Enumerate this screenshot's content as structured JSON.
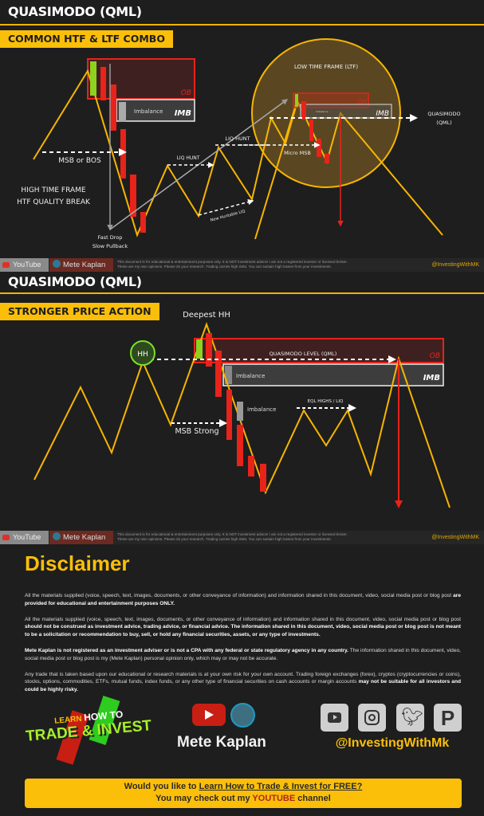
{
  "section1": {
    "title": "QUASIMODO (QML)",
    "banner": "COMMON HTF & LTF COMBO",
    "labels": {
      "ob": "OB",
      "imbalance": "Imbalance",
      "imb": "IMB",
      "msb": "MSB or BOS",
      "htf1": "HIGH TIME FRAME",
      "htf2": "HTF QUALITY BREAK",
      "fast_drop": "Fast Drop",
      "slow_pullback": "Slow Pullback",
      "liq_hunt_1": "LIQ HUNT",
      "liq_hunt_2": "LIQ HUNT",
      "new_liq": "New Huntable LIQ",
      "ltf": "LOW TIME FRAME (LTF)",
      "ltf_ob": "OB",
      "ltf_imb": "IMB",
      "ltf_imbalance": "Imbalance",
      "micro_msb": "Micro MSB",
      "qml1": "QUASIMODO",
      "qml2": "(QML)"
    }
  },
  "section2": {
    "title": "QUASIMODO (QML)",
    "banner": "STRONGER PRICE ACTION",
    "labels": {
      "deepest_hh": "Deepest HH",
      "hh": "HH",
      "qml_level": "QUASIMODO LEVEL (QML)",
      "ob": "OB",
      "imbalance": "Imbalance",
      "imb": "IMB",
      "imbalance2": "Imbalance",
      "eql": "EQL HIGHS / LIQ",
      "msb": "MSB Strong"
    }
  },
  "footer_bar": {
    "youtube": "YouTube",
    "author": "Mete Kaplan",
    "disclaimer_line1": "This document is for educational & entertainment purposes only. It is NOT investment advice! I am not a registered investor or licensed broker.",
    "disclaimer_line2": "These are my own opinions. Please do your research. Trading carries high risks. You can sustain high losses from your investments.",
    "handle": "@InvestingWithMK"
  },
  "disclaimer": {
    "title": "Disclaimer",
    "p1a": "All the materials supplied (voice, speech, text, images, documents, or other conveyance of information) and information shared in this document, video, social media post or blog post ",
    "p1b": "are provided for educational and entertainment purposes ONLY.",
    "p2a": "All the materials supplied (voice, speech, text, images, documents, or other conveyance of information) and information shared in this document, video, social media post or blog post ",
    "p2b": "should not be construed as investment advice, trading advice, or financial advice. The information shared in this document, video, social media post or blog post is not meant to be a solicitation or recommendation to buy, sell, or hold any financial securities, assets, or any type of investments.",
    "p3a": "Mete Kaplan is not registered as an investment adviser or is not a CPA with any federal or state regulatory agency in any country.",
    "p3b": " The information shared in this document, video, social media post or blog post is my (Mete Kaplan) personal opinion only, which may or may not be accurate.",
    "p4a": "Any trade that is taken based upon our educational or research materials is at your own risk for your own account. Trading foreign exchanges (forex), cryptos (cryptocurrencies or coins), stocks, options, commodities, ETFs, mutual funds, index funds, or any other type of financial securities on cash accounts or margin accounts ",
    "p4b": "may not be suitable for all investors and could be highly risky."
  },
  "branding": {
    "logo_learn": "LEARN",
    "logo_howto": "HOW TO",
    "logo_main": "TRADE & INVEST",
    "name": "Mete Kaplan",
    "handle": "@InvestingWithMk",
    "social_icons": [
      "youtube-icon",
      "instagram-icon",
      "twitter-icon",
      "pinterest-icon"
    ]
  },
  "cta": {
    "line1a": "Would you like to ",
    "line1b": "Learn How to Trade & Invest for FREE?",
    "line2a": "You may check out my ",
    "line2b": "YOUTUBE",
    "line2c": " channel"
  },
  "colors": {
    "accent": "#fbbf0a",
    "bearish": "#e8231a",
    "bullish": "#8ed11f",
    "price_line": "#f7b500"
  }
}
